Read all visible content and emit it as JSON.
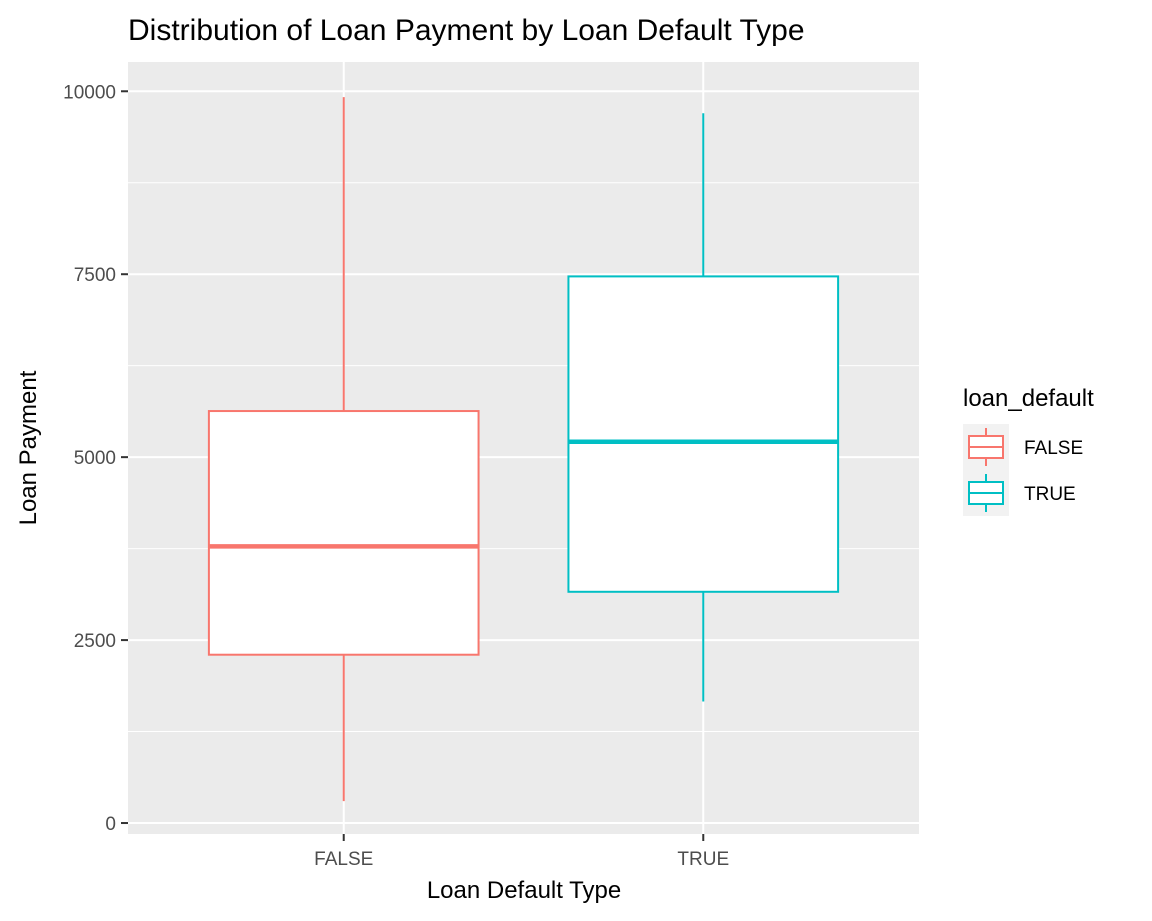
{
  "chart_data": {
    "type": "boxplot",
    "title": "Distribution of Loan Payment by Loan Default Type",
    "xlabel": "Loan Default Type",
    "ylabel": "Loan Payment",
    "categories": [
      "FALSE",
      "TRUE"
    ],
    "ylim": [
      -150,
      10400
    ],
    "y_ticks": [
      0,
      2500,
      5000,
      7500,
      10000
    ],
    "y_tick_labels": [
      "0",
      "2500",
      "5000",
      "7500",
      "10000"
    ],
    "grid": true,
    "legend_position": "right",
    "legend_title": "loan_default",
    "boxes": [
      {
        "category": "FALSE",
        "min": 300,
        "q1": 2300,
        "median": 3780,
        "q3": 5630,
        "max": 9920,
        "color": "#F8766D"
      },
      {
        "category": "TRUE",
        "min": 1660,
        "q1": 3160,
        "median": 5210,
        "q3": 7470,
        "max": 9700,
        "color": "#00BFC4"
      }
    ],
    "legend": [
      {
        "label": "FALSE",
        "color": "#F8766D"
      },
      {
        "label": "TRUE",
        "color": "#00BFC4"
      }
    ]
  }
}
